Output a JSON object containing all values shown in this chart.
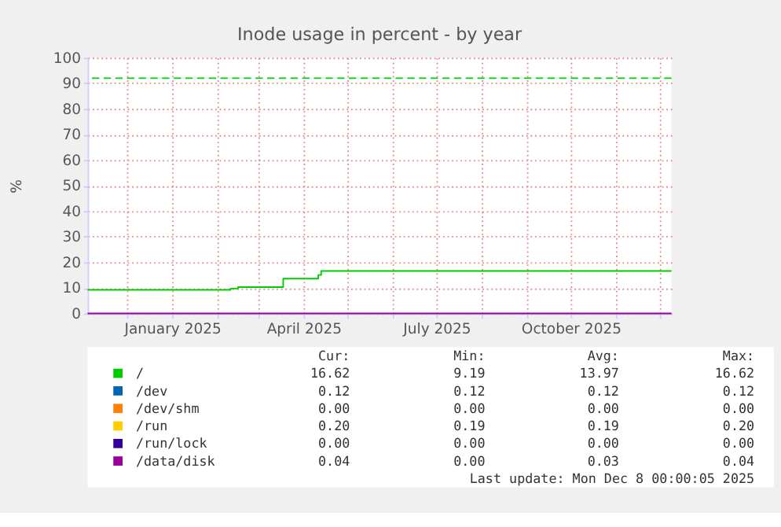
{
  "chart_data": {
    "type": "step",
    "title": "Inode usage in percent - by year",
    "ylabel": "%",
    "x": [
      "2024-11-04",
      "2025-02-10",
      "2025-02-15",
      "2025-03-18",
      "2025-04-11",
      "2025-04-13",
      "2025-12-09"
    ],
    "series": [
      {
        "name": "/",
        "color": "#00cc00",
        "values": [
          9.2,
          9.7,
          10.3,
          13.6,
          15,
          16.6,
          16.6
        ]
      },
      {
        "name": "/dev",
        "color": "#0066b3",
        "values": [
          null,
          null,
          null,
          null,
          null,
          null,
          null
        ]
      },
      {
        "name": "/dev/shm",
        "color": "#ff8000",
        "values": [
          null,
          null,
          null,
          null,
          null,
          null,
          null
        ]
      },
      {
        "name": "/run",
        "color": "#ffcc00",
        "values": [
          null,
          null,
          null,
          null,
          null,
          null,
          null
        ]
      },
      {
        "name": "/run/lock",
        "color": "#330099",
        "values": [
          null,
          null,
          null,
          null,
          null,
          null,
          null
        ]
      },
      {
        "name": "/data/disk",
        "color": "#990099",
        "values": [
          0,
          0,
          0,
          0,
          0,
          0,
          0
        ]
      }
    ],
    "xlim": [
      "2024-11-04",
      "2025-12-09"
    ],
    "xticks": [
      {
        "value": "2024-12-01",
        "label": null
      },
      {
        "value": "2025-01-01",
        "label": "January 2025"
      },
      {
        "value": "2025-02-01",
        "label": null
      },
      {
        "value": "2025-03-01",
        "label": null
      },
      {
        "value": "2025-04-01",
        "label": "April 2025"
      },
      {
        "value": "2025-05-01",
        "label": null
      },
      {
        "value": "2025-06-01",
        "label": null
      },
      {
        "value": "2025-07-01",
        "label": "July 2025"
      },
      {
        "value": "2025-08-01",
        "label": null
      },
      {
        "value": "2025-09-01",
        "label": null
      },
      {
        "value": "2025-10-01",
        "label": "October 2025"
      },
      {
        "value": "2025-11-01",
        "label": null
      },
      {
        "value": "2025-12-01",
        "label": null
      }
    ],
    "ylim": [
      0,
      100
    ],
    "yticks": [
      0,
      10,
      20,
      30,
      40,
      50,
      60,
      70,
      80,
      90,
      100
    ],
    "ref_lines": [
      {
        "axis": "y",
        "value": 92,
        "color": "#00cc00",
        "line_style": "dashed"
      }
    ],
    "grid": true,
    "legend": "bottom",
    "line_style": "solid",
    "marker": "none",
    "annotations": [
      "Cur:",
      "Min:",
      "Avg:",
      "Max:",
      "16.62",
      "9.19",
      "13.97",
      "16.62",
      "0.12",
      "0.12",
      "0.12",
      "0.12",
      "0.00",
      "0.00",
      "0.00",
      "0.00",
      "0.20",
      "0.19",
      "0.19",
      "0.20",
      "0.00",
      "0.00",
      "0.00",
      "0.00",
      "0.04",
      "0.00",
      "0.03",
      "0.04",
      "Last update: Mon Dec  8 00:00:05 2025"
    ]
  }
}
